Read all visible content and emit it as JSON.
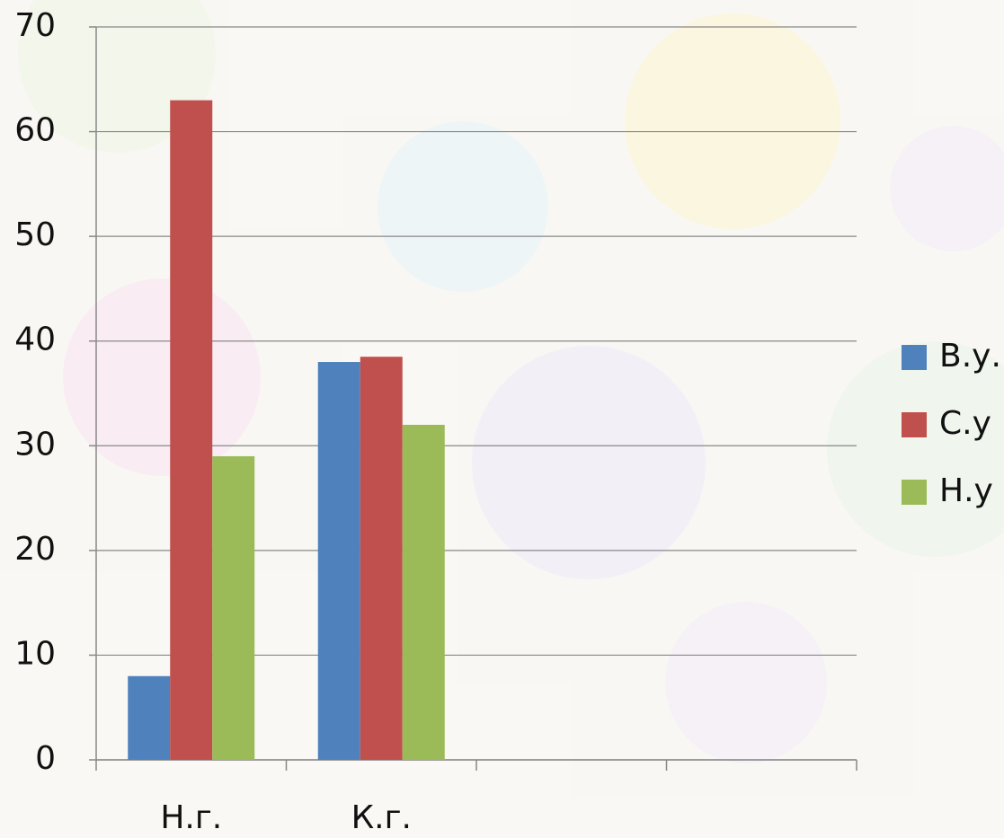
{
  "chart_data": {
    "type": "bar",
    "categories": [
      "Н.г.",
      "К.г.",
      null,
      null
    ],
    "series": [
      {
        "name": "В.у.",
        "color": "#4f81bd",
        "values": [
          8,
          38,
          null,
          null
        ]
      },
      {
        "name": "С.у",
        "color": "#c0504d",
        "values": [
          63,
          38.5,
          null,
          null
        ]
      },
      {
        "name": "Н.у",
        "color": "#9bbb59",
        "values": [
          29,
          32,
          null,
          null
        ]
      }
    ],
    "ylim": [
      0,
      70
    ],
    "yticks": [
      0,
      10,
      20,
      30,
      40,
      50,
      60,
      70
    ],
    "grid": true,
    "legend": "right"
  }
}
